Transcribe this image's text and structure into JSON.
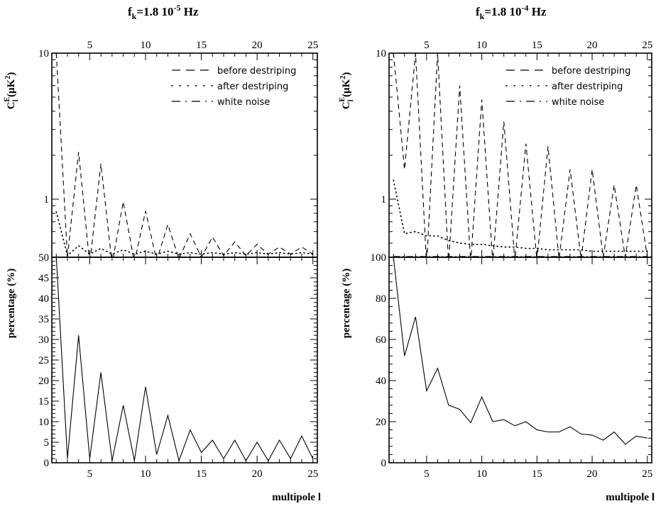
{
  "chart_data": [
    {
      "type": "line",
      "panel": "left-top",
      "title": "",
      "ylabel": "C_l^E (μK²)",
      "yscale": "log",
      "ylim": [
        0.4,
        10
      ],
      "yticks": [
        1,
        10
      ],
      "xlim": [
        1.6,
        25.4
      ],
      "xticks_top": [
        5,
        10,
        15,
        20,
        25
      ],
      "legend_position": "top-right",
      "series": [
        {
          "name": "before destriping",
          "style": "dashed",
          "x": [
            2,
            3,
            4,
            5,
            6,
            7,
            8,
            9,
            10,
            11,
            12,
            13,
            14,
            15,
            16,
            17,
            18,
            19,
            20,
            21,
            22,
            23,
            24,
            25
          ],
          "y": [
            10.0,
            0.4,
            2.1,
            0.36,
            1.75,
            0.36,
            0.96,
            0.37,
            0.83,
            0.38,
            0.67,
            0.39,
            0.58,
            0.4,
            0.55,
            0.41,
            0.51,
            0.41,
            0.49,
            0.42,
            0.47,
            0.42,
            0.47,
            0.42
          ]
        },
        {
          "name": "after destriping",
          "style": "dotted",
          "x": [
            2,
            3,
            4,
            5,
            6,
            7,
            8,
            9,
            10,
            11,
            12,
            13,
            14,
            15,
            16,
            17,
            18,
            19,
            20,
            21,
            22,
            23,
            24,
            25
          ],
          "y": [
            0.82,
            0.41,
            0.48,
            0.42,
            0.46,
            0.42,
            0.45,
            0.42,
            0.44,
            0.42,
            0.44,
            0.42,
            0.43,
            0.42,
            0.43,
            0.42,
            0.43,
            0.42,
            0.43,
            0.42,
            0.43,
            0.42,
            0.43,
            0.42
          ]
        },
        {
          "name": "white noise",
          "style": "dash-dot",
          "x": [
            2,
            25
          ],
          "y": [
            0.4,
            0.4
          ]
        }
      ]
    },
    {
      "type": "line",
      "panel": "left-bottom",
      "title": "f_k=1.8 10^-5 Hz",
      "xlabel": "multipole l",
      "ylabel": "percentage (%)",
      "ylim": [
        0,
        50
      ],
      "yticks": [
        0,
        5,
        10,
        15,
        20,
        25,
        30,
        35,
        40,
        45,
        50
      ],
      "xlim": [
        1.6,
        25.4
      ],
      "xticks": [
        5,
        10,
        15,
        20,
        25
      ],
      "series": [
        {
          "name": "",
          "style": "solid",
          "x": [
            2,
            3,
            4,
            5,
            6,
            7,
            8,
            9,
            10,
            11,
            12,
            13,
            14,
            15,
            16,
            17,
            18,
            19,
            20,
            21,
            22,
            23,
            24,
            25
          ],
          "y": [
            50,
            1,
            31,
            1,
            22,
            0.5,
            14,
            0.5,
            18.5,
            2,
            11.5,
            0.5,
            8,
            2.5,
            5.5,
            1,
            5.5,
            0.5,
            5,
            0.5,
            5.5,
            1,
            6.5,
            1
          ]
        }
      ]
    },
    {
      "type": "line",
      "panel": "right-top",
      "title": "",
      "ylabel": "C_l^E (μK²)",
      "yscale": "log",
      "ylim": [
        0.4,
        10
      ],
      "yticks": [
        1,
        10
      ],
      "xlim": [
        1.6,
        25.4
      ],
      "xticks_top": [
        5,
        10,
        15,
        20,
        25
      ],
      "legend_position": "top-right",
      "series": [
        {
          "name": "before destriping",
          "style": "dashed",
          "x": [
            2,
            3,
            4,
            5,
            6,
            7,
            8,
            9,
            10,
            11,
            12,
            13,
            14,
            15,
            16,
            17,
            18,
            19,
            20,
            21,
            22,
            23,
            24,
            25
          ],
          "y": [
            10.0,
            1.6,
            10.0,
            0.35,
            10.0,
            0.36,
            6.0,
            0.37,
            4.8,
            0.37,
            3.4,
            0.38,
            2.4,
            0.38,
            2.3,
            0.39,
            1.6,
            0.39,
            1.6,
            0.4,
            1.25,
            0.4,
            1.25,
            0.4
          ]
        },
        {
          "name": "after destriping",
          "style": "dotted",
          "x": [
            2,
            3,
            4,
            5,
            6,
            7,
            8,
            9,
            10,
            11,
            12,
            13,
            14,
            15,
            16,
            17,
            18,
            19,
            20,
            21,
            22,
            23,
            24,
            25
          ],
          "y": [
            1.35,
            0.58,
            0.6,
            0.56,
            0.56,
            0.52,
            0.5,
            0.49,
            0.49,
            0.48,
            0.47,
            0.47,
            0.46,
            0.46,
            0.45,
            0.45,
            0.45,
            0.45,
            0.44,
            0.44,
            0.44,
            0.44,
            0.44,
            0.44
          ]
        },
        {
          "name": "white noise",
          "style": "dash-dot",
          "x": [
            2,
            25
          ],
          "y": [
            0.405,
            0.405
          ]
        }
      ]
    },
    {
      "type": "line",
      "panel": "right-bottom",
      "title": "f_k=1.8 10^-4 Hz",
      "xlabel": "multipole l",
      "ylabel": "percentage (%)",
      "ylim": [
        0,
        100
      ],
      "yticks": [
        0,
        20,
        40,
        60,
        80,
        100
      ],
      "xlim": [
        1.6,
        25.4
      ],
      "xticks": [
        5,
        10,
        15,
        20,
        25
      ],
      "series": [
        {
          "name": "",
          "style": "solid",
          "x": [
            2,
            3,
            4,
            5,
            6,
            7,
            8,
            9,
            10,
            11,
            12,
            13,
            14,
            15,
            16,
            17,
            18,
            19,
            20,
            21,
            22,
            23,
            24,
            25
          ],
          "y": [
            100,
            52,
            71,
            35,
            46,
            28,
            26,
            19.5,
            32,
            20,
            21,
            18,
            20,
            16,
            15,
            15,
            17.5,
            14,
            13.5,
            11,
            15,
            9,
            13,
            12
          ]
        }
      ]
    }
  ]
}
